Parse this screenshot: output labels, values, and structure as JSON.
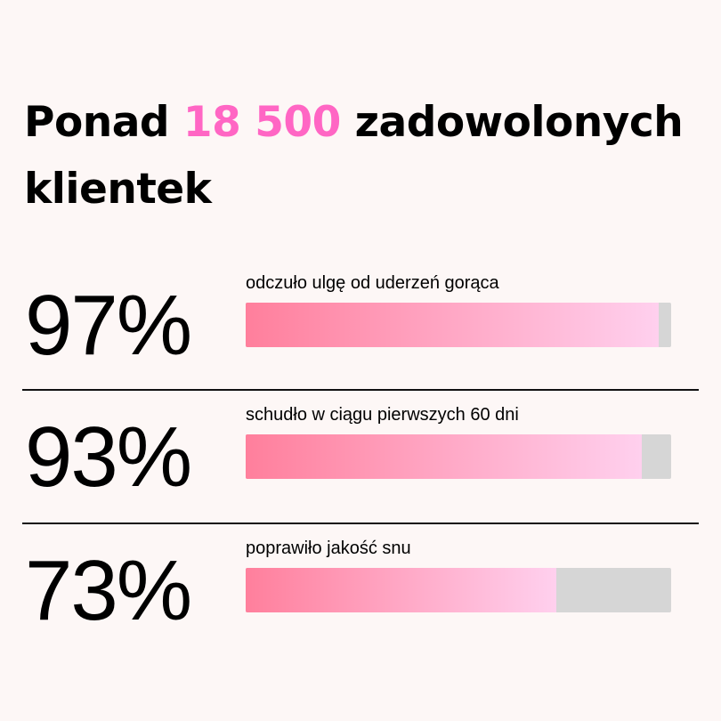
{
  "title": {
    "before": "Ponad ",
    "highlight": "18 500",
    "after": " zadowolonych klientek"
  },
  "colors": {
    "accent": "#ff66c4",
    "bar_start": "#ff7f9c",
    "bar_end": "#ffd0ee",
    "track": "#d6d6d6",
    "background": "#fdf7f6"
  },
  "chart_data": {
    "type": "bar",
    "orientation": "horizontal",
    "categories": [
      "odczuło ulgę od uderzeń gorąca",
      "schudło w ciągu pierwszych 60 dni",
      "poprawiło jakość snu"
    ],
    "values": [
      97,
      93,
      73
    ],
    "value_labels": [
      "97%",
      "93%",
      "73%"
    ],
    "xlim": [
      0,
      100
    ]
  }
}
